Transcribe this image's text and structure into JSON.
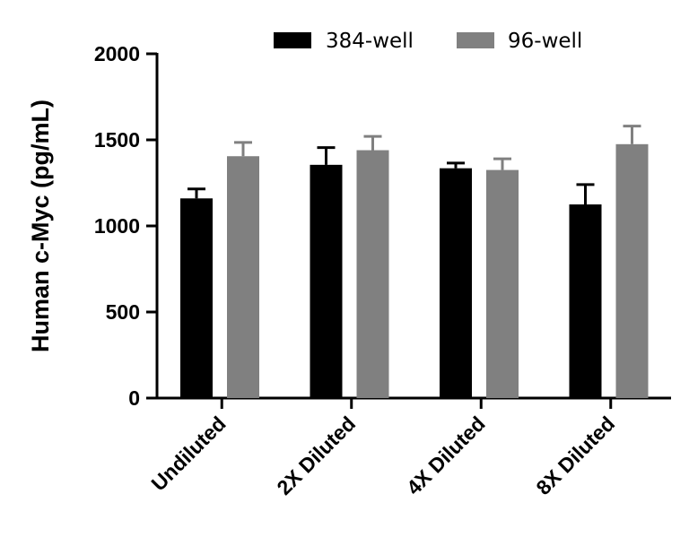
{
  "chart_data": {
    "type": "bar",
    "title": "",
    "xlabel": "",
    "ylabel": "Human c-Myc (pg/mL)",
    "ylim": [
      0,
      2000
    ],
    "yticks": [
      0,
      500,
      1000,
      1500,
      2000
    ],
    "grid": false,
    "legend_position": "top",
    "categories": [
      "Undiluted",
      "2X Diluted",
      "4X Diluted",
      "8X Diluted"
    ],
    "series": [
      {
        "name": "384-well",
        "color": "#000000",
        "values": [
          1160,
          1355,
          1335,
          1125
        ],
        "errors": [
          55,
          100,
          30,
          115
        ]
      },
      {
        "name": "96-well",
        "color": "#808080",
        "values": [
          1405,
          1440,
          1325,
          1475
        ],
        "errors": [
          80,
          80,
          65,
          105
        ]
      }
    ]
  }
}
